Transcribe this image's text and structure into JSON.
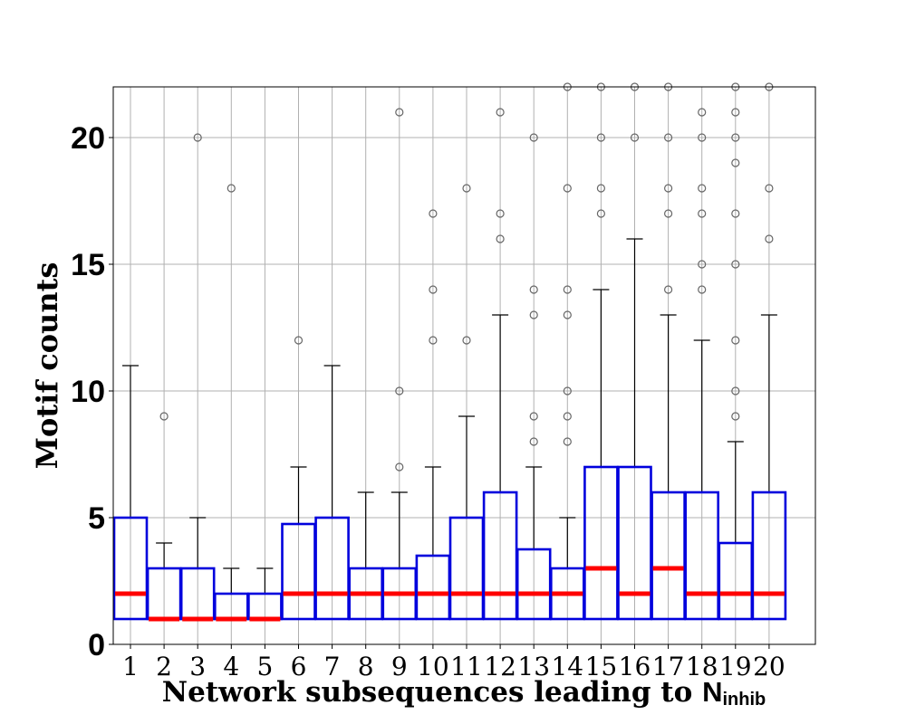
{
  "chart_data": {
    "type": "box",
    "title": "",
    "xlabel": "Network subsequences leading to ",
    "xlabel_symbol": "N",
    "xlabel_subscript": "inhib",
    "ylabel": "Motif counts",
    "ylim": [
      0,
      22
    ],
    "yticks": [
      0,
      5,
      10,
      15,
      20
    ],
    "grid": true,
    "categories": [
      "1",
      "2",
      "3",
      "4",
      "5",
      "6",
      "7",
      "8",
      "9",
      "10",
      "11",
      "12",
      "13",
      "14",
      "15",
      "16",
      "17",
      "18",
      "19",
      "20"
    ],
    "colors": {
      "box": "#0000dd",
      "median": "#ff0000",
      "whisker": "#000000",
      "flier": "#666666",
      "grid": "#b0b0b0"
    },
    "boxes": [
      {
        "q1": 1,
        "median": 2,
        "q3": 5,
        "whisker_low": 1,
        "whisker_high": 11,
        "fliers": []
      },
      {
        "q1": 1,
        "median": 1,
        "q3": 3,
        "whisker_low": 1,
        "whisker_high": 4,
        "fliers": [
          9
        ]
      },
      {
        "q1": 1,
        "median": 1,
        "q3": 3,
        "whisker_low": 1,
        "whisker_high": 5,
        "fliers": [
          20
        ]
      },
      {
        "q1": 1,
        "median": 1,
        "q3": 2,
        "whisker_low": 1,
        "whisker_high": 3,
        "fliers": [
          18
        ]
      },
      {
        "q1": 1,
        "median": 1,
        "q3": 2,
        "whisker_low": 1,
        "whisker_high": 3,
        "fliers": []
      },
      {
        "q1": 1,
        "median": 2,
        "q3": 4.75,
        "whisker_low": 1,
        "whisker_high": 7,
        "fliers": [
          12
        ]
      },
      {
        "q1": 1,
        "median": 2,
        "q3": 5,
        "whisker_low": 1,
        "whisker_high": 11,
        "fliers": []
      },
      {
        "q1": 1,
        "median": 2,
        "q3": 3,
        "whisker_low": 1,
        "whisker_high": 6,
        "fliers": []
      },
      {
        "q1": 1,
        "median": 2,
        "q3": 3,
        "whisker_low": 1,
        "whisker_high": 6,
        "fliers": [
          7,
          10,
          21
        ]
      },
      {
        "q1": 1,
        "median": 2,
        "q3": 3.5,
        "whisker_low": 1,
        "whisker_high": 7,
        "fliers": [
          12,
          14,
          17
        ]
      },
      {
        "q1": 1,
        "median": 2,
        "q3": 5,
        "whisker_low": 1,
        "whisker_high": 9,
        "fliers": [
          12,
          18
        ]
      },
      {
        "q1": 1,
        "median": 2,
        "q3": 6,
        "whisker_low": 1,
        "whisker_high": 13,
        "fliers": [
          16,
          17,
          21
        ]
      },
      {
        "q1": 1,
        "median": 2,
        "q3": 3.75,
        "whisker_low": 1,
        "whisker_high": 7,
        "fliers": [
          8,
          9,
          13,
          14,
          20
        ]
      },
      {
        "q1": 1,
        "median": 2,
        "q3": 3,
        "whisker_low": 1,
        "whisker_high": 5,
        "fliers": [
          8,
          9,
          10,
          13,
          14,
          18,
          22
        ]
      },
      {
        "q1": 1,
        "median": 3,
        "q3": 7,
        "whisker_low": 1,
        "whisker_high": 14,
        "fliers": [
          17,
          18,
          20,
          22
        ]
      },
      {
        "q1": 1,
        "median": 2,
        "q3": 7,
        "whisker_low": 1,
        "whisker_high": 16,
        "fliers": [
          20,
          22
        ]
      },
      {
        "q1": 1,
        "median": 3,
        "q3": 6,
        "whisker_low": 1,
        "whisker_high": 13,
        "fliers": [
          14,
          17,
          18,
          20,
          22
        ]
      },
      {
        "q1": 1,
        "median": 2,
        "q3": 6,
        "whisker_low": 1,
        "whisker_high": 12,
        "fliers": [
          14,
          15,
          17,
          18,
          20,
          21
        ]
      },
      {
        "q1": 1,
        "median": 2,
        "q3": 4,
        "whisker_low": 1,
        "whisker_high": 8,
        "fliers": [
          9,
          10,
          12,
          15,
          17,
          19,
          20,
          21,
          22
        ]
      },
      {
        "q1": 1,
        "median": 2,
        "q3": 6,
        "whisker_low": 1,
        "whisker_high": 13,
        "fliers": [
          16,
          18,
          22
        ]
      }
    ]
  }
}
